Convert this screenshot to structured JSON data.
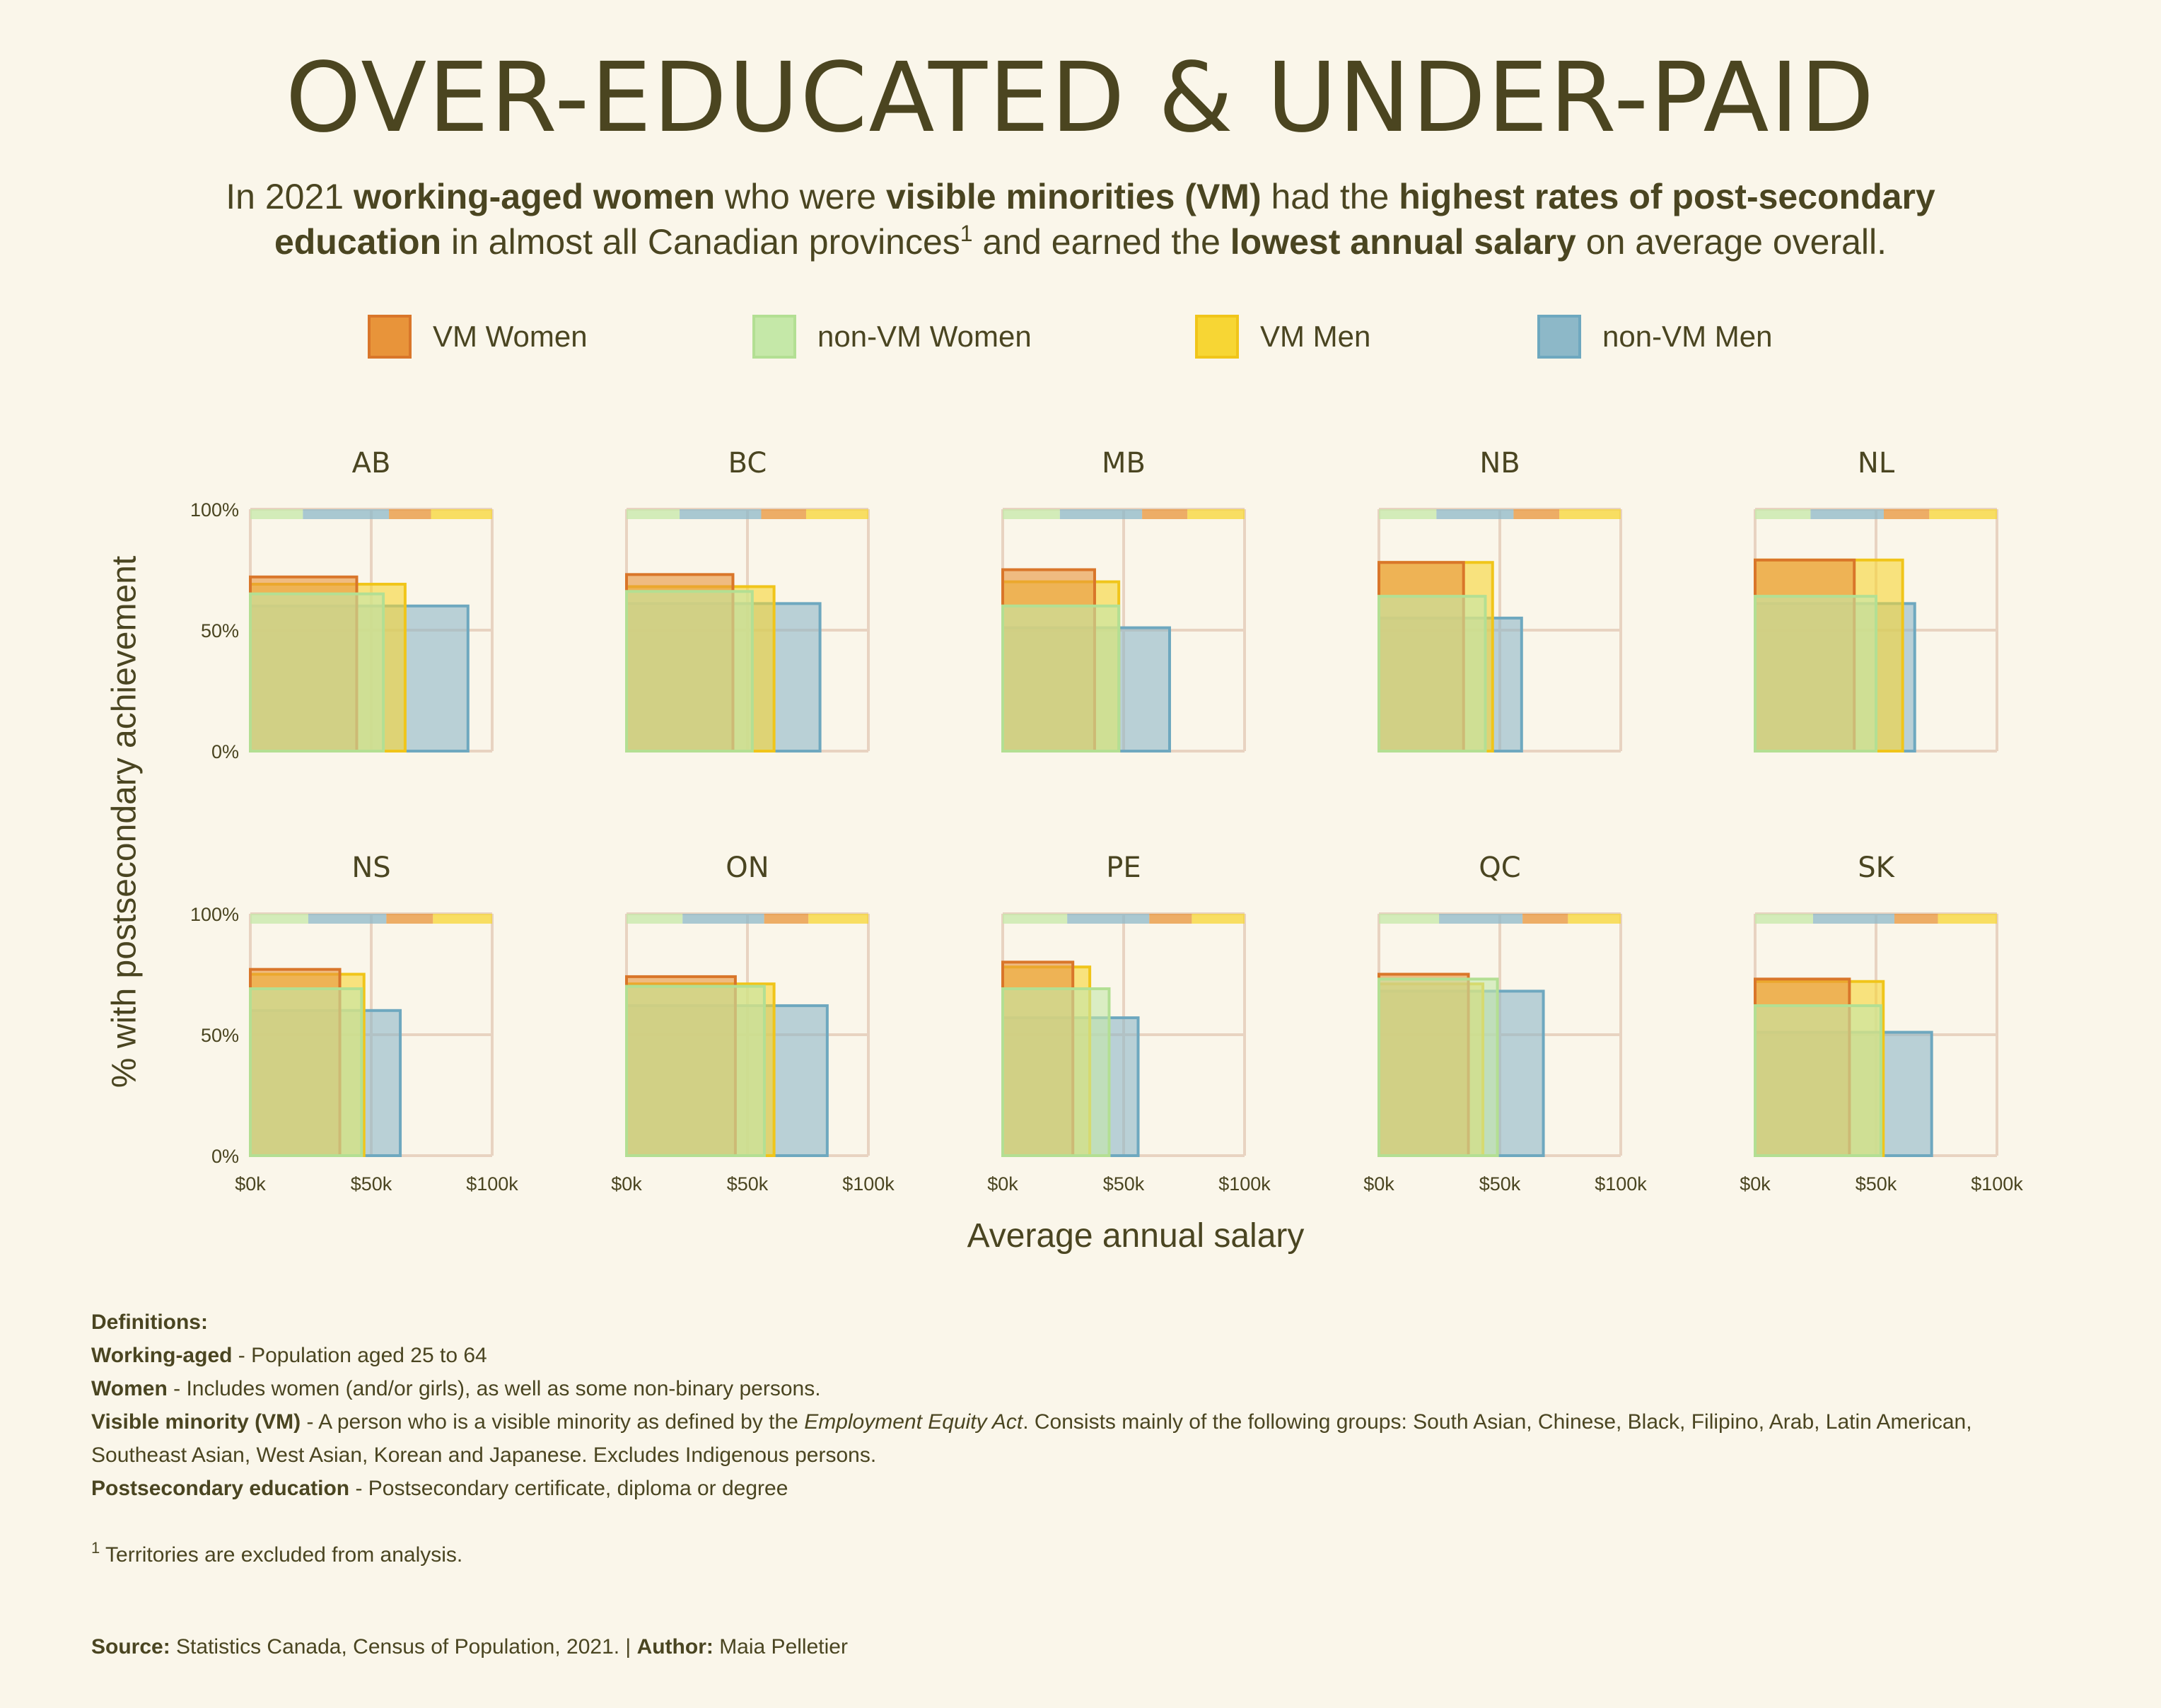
{
  "title": "OVER-EDUCATED & UNDER-PAID",
  "subtitle": {
    "s1": "In 2021 ",
    "b1": "working-aged women",
    "s2": " who were ",
    "b2": "visible minorities (VM)",
    "s3": " had the ",
    "b3": "highest rates of post-secondary education",
    "s4": " in almost all Canadian provinces",
    "sup": "1",
    "s5": " and earned the ",
    "b4": "lowest annual salary",
    "s6": " on average overall."
  },
  "colors": {
    "vm_women": "#e8943a",
    "non_vm_women": "#c5e8a8",
    "vm_men": "#f7d634",
    "non_vm_men": "#8db8c8",
    "grid": "#e8d3c1",
    "text": "#4a4521",
    "background": "#faf6ea"
  },
  "chart_data": {
    "type": "bar",
    "layout": "small-multiples",
    "series": [
      {
        "key": "vm_women",
        "name": "VM Women"
      },
      {
        "key": "non_vm_women",
        "name": "non-VM Women"
      },
      {
        "key": "vm_men",
        "name": "VM Men"
      },
      {
        "key": "non_vm_men",
        "name": "non-VM Men"
      }
    ],
    "xlabel": "Average annual salary",
    "ylabel": "% with postsecondary achievement",
    "xlim": [
      0,
      100000
    ],
    "ylim": [
      0,
      100
    ],
    "x_ticks": [
      "$0k",
      "$50k",
      "$100k"
    ],
    "y_ticks": [
      "0%",
      "50%",
      "100%"
    ],
    "grid": true,
    "legend_position": "top",
    "panels": [
      {
        "province": "AB",
        "salary": {
          "vm_women": 44000,
          "non_vm_women": 55000,
          "vm_men": 64000,
          "non_vm_men": 90000
        },
        "pct": {
          "vm_women": 72,
          "non_vm_women": 65,
          "vm_men": 69,
          "non_vm_men": 60
        }
      },
      {
        "province": "BC",
        "salary": {
          "vm_women": 44000,
          "non_vm_women": 52000,
          "vm_men": 61000,
          "non_vm_men": 80000
        },
        "pct": {
          "vm_women": 73,
          "non_vm_women": 66,
          "vm_men": 68,
          "non_vm_men": 61
        }
      },
      {
        "province": "MB",
        "salary": {
          "vm_women": 38000,
          "non_vm_women": 48000,
          "vm_men": 48000,
          "non_vm_men": 69000
        },
        "pct": {
          "vm_women": 75,
          "non_vm_women": 60,
          "vm_men": 70,
          "non_vm_men": 51
        }
      },
      {
        "province": "NB",
        "salary": {
          "vm_women": 35000,
          "non_vm_women": 44000,
          "vm_men": 47000,
          "non_vm_men": 59000
        },
        "pct": {
          "vm_women": 78,
          "non_vm_women": 64,
          "vm_men": 78,
          "non_vm_men": 55
        }
      },
      {
        "province": "NL",
        "salary": {
          "vm_women": 41000,
          "non_vm_women": 50000,
          "vm_men": 61000,
          "non_vm_men": 66000
        },
        "pct": {
          "vm_women": 79,
          "non_vm_women": 64,
          "vm_men": 79,
          "non_vm_men": 61
        }
      },
      {
        "province": "NS",
        "salary": {
          "vm_women": 37000,
          "non_vm_women": 46000,
          "vm_men": 47000,
          "non_vm_men": 62000
        },
        "pct": {
          "vm_women": 77,
          "non_vm_women": 69,
          "vm_men": 75,
          "non_vm_men": 60
        }
      },
      {
        "province": "ON",
        "salary": {
          "vm_women": 45000,
          "non_vm_women": 57000,
          "vm_men": 61000,
          "non_vm_men": 83000
        },
        "pct": {
          "vm_women": 74,
          "non_vm_women": 70,
          "vm_men": 71,
          "non_vm_men": 62
        }
      },
      {
        "province": "PE",
        "salary": {
          "vm_women": 29000,
          "non_vm_women": 44000,
          "vm_men": 36000,
          "non_vm_men": 56000
        },
        "pct": {
          "vm_women": 80,
          "non_vm_women": 69,
          "vm_men": 78,
          "non_vm_men": 57
        }
      },
      {
        "province": "QC",
        "salary": {
          "vm_women": 37000,
          "non_vm_women": 49000,
          "vm_men": 43000,
          "non_vm_men": 68000
        },
        "pct": {
          "vm_women": 75,
          "non_vm_women": 73,
          "vm_men": 71,
          "non_vm_men": 68
        }
      },
      {
        "province": "SK",
        "salary": {
          "vm_women": 39000,
          "non_vm_women": 52000,
          "vm_men": 53000,
          "non_vm_men": 73000
        },
        "pct": {
          "vm_women": 73,
          "non_vm_women": 62,
          "vm_men": 72,
          "non_vm_men": 51
        }
      }
    ]
  },
  "definitions": {
    "heading": "Definitions:",
    "items": [
      {
        "term": "Working-aged",
        "text": " - Population aged 25 to 64"
      },
      {
        "term": "Women",
        "text": " - Includes women (and/or girls), as well as some non-binary persons."
      },
      {
        "term": "Visible minority (VM)",
        "text_before": " - A person who is a visible minority as defined by the ",
        "italic": "Employment Equity Act",
        "text_after": ". Consists mainly of the following groups: South Asian, Chinese, Black, Filipino, Arab, Latin American, Southeast Asian, West Asian, Korean and Japanese. Excludes Indigenous persons."
      },
      {
        "term": "Postsecondary education",
        "text": " - Postsecondary certificate, diploma or degree"
      }
    ],
    "footnote_mark": "1",
    "footnote": " Territories are excluded from analysis."
  },
  "source": {
    "source_label": "Source:",
    "source_text": "  Statistics Canada, Census of Population, 2021. | ",
    "author_label": "Author:",
    "author_text": "  Maia Pelletier"
  }
}
